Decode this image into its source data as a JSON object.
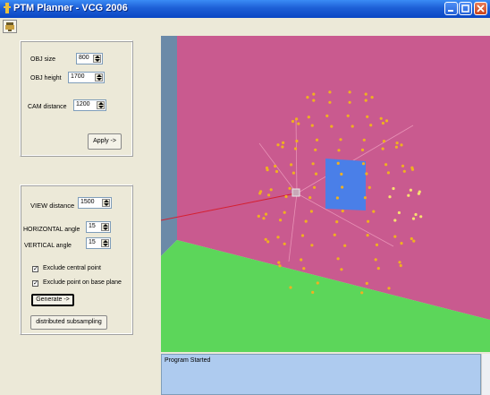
{
  "window": {
    "title": "PTM Planner - VCG 2006"
  },
  "controls_top": {
    "obj_size": {
      "label": "OBJ size",
      "value": "800"
    },
    "obj_height": {
      "label": "OBJ height",
      "value": "1700"
    },
    "cam_distance": {
      "label": "CAM distance",
      "value": "1200"
    },
    "apply_label": "Apply ->"
  },
  "controls_bottom": {
    "view_distance": {
      "label": "VIEW distance",
      "value": "1500"
    },
    "horizontal_angle": {
      "label": "HORIZONTAL angle",
      "value": "15"
    },
    "vertical_angle": {
      "label": "VERTICAL angle",
      "value": "15"
    },
    "exclude_central": {
      "label": "Exclude central point",
      "checked": true
    },
    "exclude_base": {
      "label": "Exclude point on base plane",
      "checked": true
    },
    "generate_label": "Generate ->",
    "subsampling_label": "distributed subsampling"
  },
  "console": {
    "text": "Program Started"
  },
  "icons": [
    "app-icon",
    "minimize-icon",
    "maximize-icon",
    "close-icon",
    "toolbar-tool-icon"
  ],
  "colors": {
    "back_wall": "#c95a8f",
    "floor": "#5cd65a",
    "left_wall": "#6b8aa8",
    "target": "#4a7fe8",
    "points": "#f0b020",
    "console": "#aecbef"
  }
}
